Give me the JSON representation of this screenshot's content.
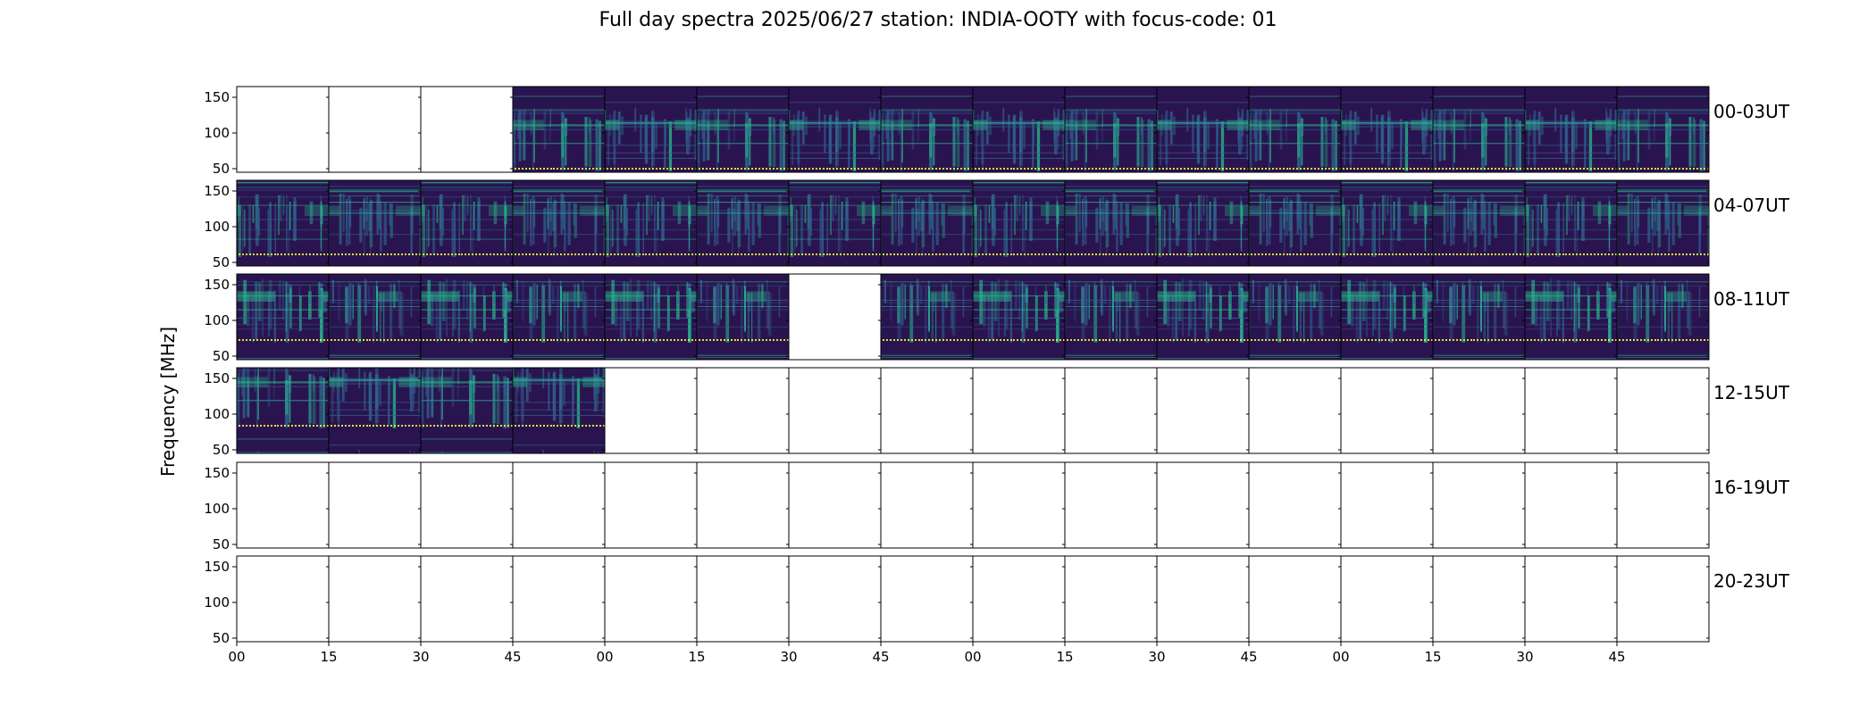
{
  "title": "Full day spectra 2025/06/27 station: INDIA-OOTY with focus-code: 01",
  "ylabel": "Frequency [MHz]",
  "chart_data": {
    "type": "heatmap",
    "title": "Full day spectra 2025/06/27 station: INDIA-OOTY with focus-code: 01",
    "ylabel": "Frequency [MHz]",
    "xlabel": "",
    "y_ticks": [
      50,
      100,
      150
    ],
    "ylim": [
      45,
      165
    ],
    "x_tick_labels": [
      "00",
      "15",
      "30",
      "45",
      "00",
      "15",
      "30",
      "45",
      "00",
      "15",
      "30",
      "45",
      "00",
      "15",
      "30",
      "45"
    ],
    "colormap": "viridis",
    "colors": {
      "background": "#2a1450",
      "mid": "#2f5f8c",
      "bright": "#26b98a",
      "peak": "#dfe33a",
      "axis": "#000000"
    },
    "panels_per_row": 16,
    "panel_minutes": 15,
    "rows": [
      {
        "label": "00-03UT",
        "data_present": [
          false,
          false,
          false,
          true,
          true,
          true,
          true,
          true,
          true,
          true,
          true,
          true,
          true,
          true,
          true,
          true
        ]
      },
      {
        "label": "04-07UT",
        "data_present": [
          true,
          true,
          true,
          true,
          true,
          true,
          true,
          true,
          true,
          true,
          true,
          true,
          true,
          true,
          true,
          true
        ]
      },
      {
        "label": "08-11UT",
        "data_present": [
          true,
          true,
          true,
          true,
          true,
          true,
          false,
          true,
          true,
          true,
          true,
          true,
          true,
          true,
          true,
          true
        ]
      },
      {
        "label": "12-15UT",
        "data_present": [
          true,
          true,
          true,
          true,
          false,
          false,
          false,
          false,
          false,
          false,
          false,
          false,
          false,
          false,
          false,
          false
        ]
      },
      {
        "label": "16-19UT",
        "data_present": [
          false,
          false,
          false,
          false,
          false,
          false,
          false,
          false,
          false,
          false,
          false,
          false,
          false,
          false,
          false,
          false
        ]
      },
      {
        "label": "20-23UT",
        "data_present": [
          false,
          false,
          false,
          false,
          false,
          false,
          false,
          false,
          false,
          false,
          false,
          false,
          false,
          false,
          false,
          false
        ]
      }
    ]
  }
}
